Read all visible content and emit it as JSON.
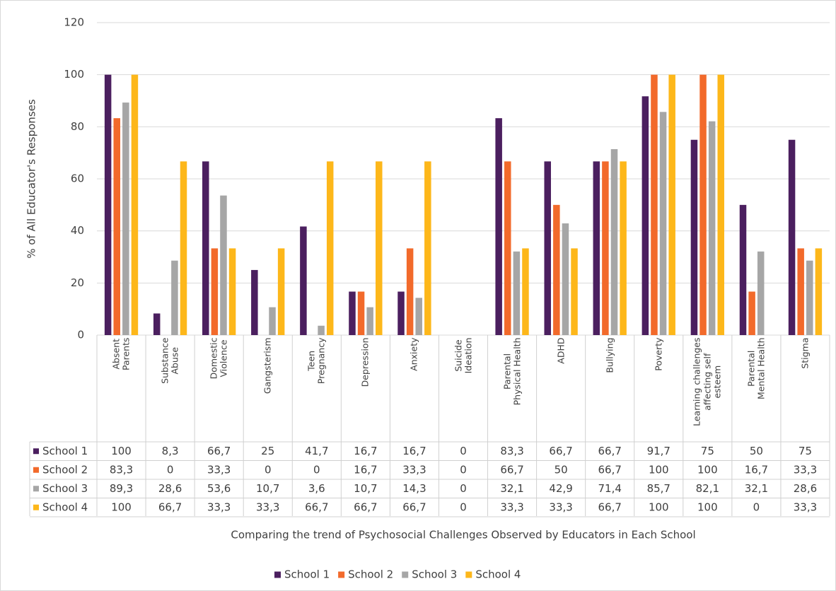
{
  "chart_data": {
    "type": "bar",
    "xlabel": "Comparing the trend of Psychosocial Challenges Observed by Educators in Each School",
    "ylabel": "% of All Educator's Responses",
    "categories": [
      "Absent\nParents",
      "Substance\nAbuse",
      "Domestic\nViolence",
      "Gangsterism",
      "Teen\nPregnancy",
      "Depression",
      "Anxiety",
      "Suicide\nIdeation",
      "Parental\nPhysical Health",
      "ADHD",
      "Bullying",
      "Poverty",
      "Learning challenges\naffecting self\nesteem",
      "Parental\nMental Health",
      "Stigma"
    ],
    "series": [
      {
        "name": "School 1",
        "color": "#4b1f5f",
        "values": [
          100,
          8.3,
          66.7,
          25,
          41.7,
          16.7,
          16.7,
          0,
          83.3,
          66.7,
          66.7,
          91.7,
          75,
          50,
          75
        ],
        "value_labels": [
          "100",
          "8,3",
          "66,7",
          "25",
          "41,7",
          "16,7",
          "16,7",
          "0",
          "83,3",
          "66,7",
          "66,7",
          "91,7",
          "75",
          "50",
          "75"
        ]
      },
      {
        "name": "School 2",
        "color": "#f26a2b",
        "values": [
          83.3,
          0,
          33.3,
          0,
          0,
          16.7,
          33.3,
          0,
          66.7,
          50,
          66.7,
          100,
          100,
          16.7,
          33.3
        ],
        "value_labels": [
          "83,3",
          "0",
          "33,3",
          "0",
          "0",
          "16,7",
          "33,3",
          "0",
          "66,7",
          "50",
          "66,7",
          "100",
          "100",
          "16,7",
          "33,3"
        ]
      },
      {
        "name": "School 3",
        "color": "#a6a6a6",
        "values": [
          89.3,
          28.6,
          53.6,
          10.7,
          3.6,
          10.7,
          14.3,
          0,
          32.1,
          42.9,
          71.4,
          85.7,
          82.1,
          32.1,
          28.6
        ],
        "value_labels": [
          "89,3",
          "28,6",
          "53,6",
          "10,7",
          "3,6",
          "10,7",
          "14,3",
          "0",
          "32,1",
          "42,9",
          "71,4",
          "85,7",
          "82,1",
          "32,1",
          "28,6"
        ]
      },
      {
        "name": "School 4",
        "color": "#fdb71a",
        "values": [
          100,
          66.7,
          33.3,
          33.3,
          66.7,
          66.7,
          66.7,
          0,
          33.3,
          33.3,
          66.7,
          100,
          100,
          0,
          33.3
        ],
        "value_labels": [
          "100",
          "66,7",
          "33,3",
          "33,3",
          "66,7",
          "66,7",
          "66,7",
          "0",
          "33,3",
          "33,3",
          "66,7",
          "100",
          "100",
          "0",
          "33,3"
        ]
      }
    ],
    "ylim": [
      0,
      120
    ],
    "yticks": [
      0,
      20,
      40,
      60,
      80,
      100,
      120
    ],
    "grid": true,
    "legend": "bottom"
  }
}
